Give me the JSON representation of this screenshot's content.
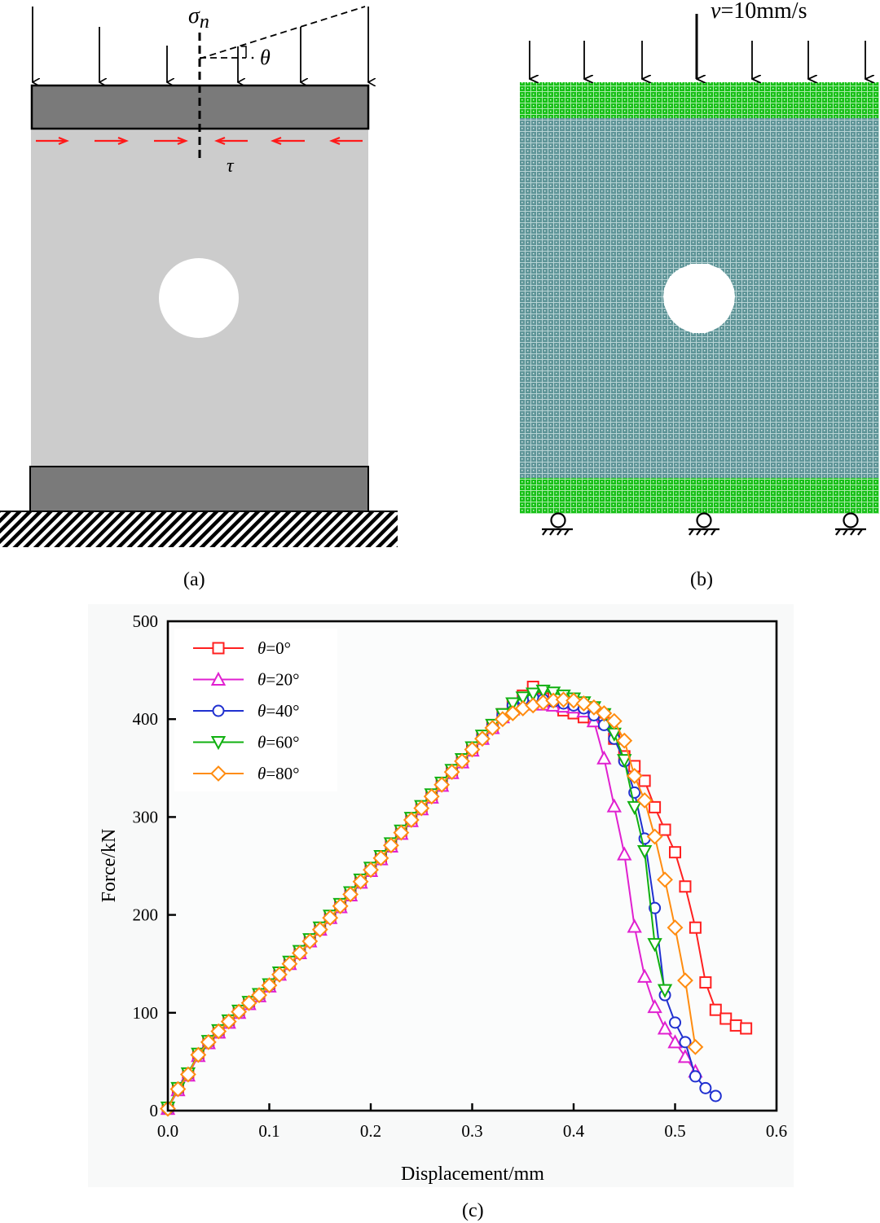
{
  "panel_a": {
    "caption": "(a)",
    "sigma_label": "σ",
    "sigma_sub": "n",
    "tau_label": "τ",
    "theta_label": "θ",
    "colors": {
      "plate": "#7a7a7a",
      "specimen": "#cccccc",
      "shear_arrow": "#ff1a1a"
    }
  },
  "panel_b": {
    "caption": "(b)",
    "velocity_label": "v=10mm/s",
    "velocity_symbol": "v",
    "velocity_value": "=10mm/s",
    "colors": {
      "loading_plate": "#1ec81e",
      "specimen_mesh": "#5f9598"
    }
  },
  "panel_c": {
    "caption": "(c)"
  },
  "chart_data": {
    "type": "line",
    "title": "",
    "xlabel": "Displacement/mm",
    "ylabel": "Force/kN",
    "xlim": [
      0.0,
      0.6
    ],
    "ylim": [
      0,
      500
    ],
    "xticks": [
      "0.0",
      "0.1",
      "0.2",
      "0.3",
      "0.4",
      "0.5",
      "0.6"
    ],
    "yticks": [
      "0",
      "100",
      "200",
      "300",
      "400",
      "500"
    ],
    "grid": false,
    "legend_position": "top-left",
    "series": [
      {
        "name": "θ=0°",
        "theta": "θ",
        "value": "=0°",
        "color": "#ff2020",
        "marker": "square",
        "x": [
          0.0,
          0.01,
          0.02,
          0.03,
          0.04,
          0.05,
          0.06,
          0.07,
          0.08,
          0.09,
          0.1,
          0.11,
          0.12,
          0.13,
          0.14,
          0.15,
          0.16,
          0.17,
          0.18,
          0.19,
          0.2,
          0.21,
          0.22,
          0.23,
          0.24,
          0.25,
          0.26,
          0.27,
          0.28,
          0.29,
          0.3,
          0.31,
          0.32,
          0.33,
          0.34,
          0.35,
          0.36,
          0.37,
          0.38,
          0.39,
          0.4,
          0.41,
          0.42,
          0.43,
          0.44,
          0.45,
          0.46,
          0.47,
          0.48,
          0.49,
          0.5,
          0.51,
          0.52,
          0.53,
          0.54,
          0.55,
          0.56,
          0.57
        ],
        "y": [
          2,
          22,
          37,
          57,
          70,
          80,
          91,
          101,
          110,
          118,
          128,
          140,
          151,
          162,
          174,
          186,
          198,
          210,
          222,
          235,
          247,
          259,
          272,
          285,
          298,
          310,
          322,
          334,
          347,
          358,
          370,
          382,
          393,
          405,
          415,
          424,
          433,
          421,
          415,
          409,
          406,
          402,
          398,
          396,
          380,
          362,
          352,
          337,
          310,
          287,
          264,
          229,
          187,
          131,
          103,
          94,
          87,
          84
        ]
      },
      {
        "name": "θ=20°",
        "theta": "θ",
        "value": "=20°",
        "color": "#e020d0",
        "marker": "triangle-up",
        "x": [
          0.0,
          0.01,
          0.02,
          0.03,
          0.04,
          0.05,
          0.06,
          0.07,
          0.08,
          0.09,
          0.1,
          0.11,
          0.12,
          0.13,
          0.14,
          0.15,
          0.16,
          0.17,
          0.18,
          0.19,
          0.2,
          0.21,
          0.22,
          0.23,
          0.24,
          0.25,
          0.26,
          0.27,
          0.28,
          0.29,
          0.3,
          0.31,
          0.32,
          0.33,
          0.34,
          0.35,
          0.36,
          0.37,
          0.38,
          0.39,
          0.4,
          0.41,
          0.42,
          0.43,
          0.44,
          0.45,
          0.46,
          0.47,
          0.48,
          0.49,
          0.5,
          0.51,
          0.52
        ],
        "y": [
          2,
          21,
          36,
          56,
          69,
          80,
          90,
          100,
          109,
          117,
          127,
          139,
          150,
          161,
          173,
          185,
          197,
          208,
          220,
          233,
          245,
          257,
          270,
          283,
          296,
          308,
          320,
          332,
          345,
          356,
          368,
          380,
          391,
          402,
          410,
          415,
          416,
          415,
          414,
          413,
          412,
          408,
          398,
          360,
          311,
          262,
          188,
          137,
          106,
          84,
          70,
          55,
          40
        ]
      },
      {
        "name": "θ=40°",
        "theta": "θ",
        "value": "=40°",
        "color": "#2030d0",
        "marker": "circle",
        "x": [
          0.0,
          0.01,
          0.02,
          0.03,
          0.04,
          0.05,
          0.06,
          0.07,
          0.08,
          0.09,
          0.1,
          0.11,
          0.12,
          0.13,
          0.14,
          0.15,
          0.16,
          0.17,
          0.18,
          0.19,
          0.2,
          0.21,
          0.22,
          0.23,
          0.24,
          0.25,
          0.26,
          0.27,
          0.28,
          0.29,
          0.3,
          0.31,
          0.32,
          0.33,
          0.34,
          0.35,
          0.36,
          0.37,
          0.38,
          0.39,
          0.4,
          0.41,
          0.42,
          0.43,
          0.44,
          0.45,
          0.46,
          0.47,
          0.48,
          0.49,
          0.5,
          0.51,
          0.52,
          0.53,
          0.54
        ],
        "y": [
          2,
          22,
          37,
          57,
          70,
          81,
          91,
          101,
          110,
          118,
          128,
          140,
          151,
          162,
          174,
          186,
          198,
          210,
          222,
          235,
          247,
          259,
          272,
          285,
          298,
          310,
          322,
          334,
          347,
          358,
          370,
          382,
          393,
          404,
          414,
          420,
          422,
          420,
          418,
          416,
          414,
          411,
          404,
          394,
          380,
          357,
          325,
          278,
          207,
          118,
          90,
          70,
          35,
          23,
          15
        ]
      },
      {
        "name": "θ=60°",
        "theta": "θ",
        "value": "=60°",
        "color": "#10b010",
        "marker": "triangle-down",
        "x": [
          0.0,
          0.01,
          0.02,
          0.03,
          0.04,
          0.05,
          0.06,
          0.07,
          0.08,
          0.09,
          0.1,
          0.11,
          0.12,
          0.13,
          0.14,
          0.15,
          0.16,
          0.17,
          0.18,
          0.19,
          0.2,
          0.21,
          0.22,
          0.23,
          0.24,
          0.25,
          0.26,
          0.27,
          0.28,
          0.29,
          0.3,
          0.31,
          0.32,
          0.33,
          0.34,
          0.35,
          0.36,
          0.37,
          0.38,
          0.39,
          0.4,
          0.41,
          0.42,
          0.43,
          0.44,
          0.45,
          0.46,
          0.47,
          0.48,
          0.49
        ],
        "y": [
          3,
          23,
          38,
          58,
          71,
          82,
          92,
          102,
          111,
          119,
          129,
          141,
          152,
          163,
          175,
          187,
          199,
          211,
          223,
          236,
          248,
          260,
          273,
          286,
          299,
          311,
          323,
          335,
          348,
          359,
          371,
          383,
          394,
          405,
          416,
          422,
          426,
          429,
          427,
          424,
          421,
          417,
          412,
          405,
          385,
          358,
          310,
          265,
          170,
          123
        ]
      },
      {
        "name": "θ=80°",
        "theta": "θ",
        "value": "=80°",
        "color": "#ff8c10",
        "marker": "diamond",
        "x": [
          0.0,
          0.01,
          0.02,
          0.03,
          0.04,
          0.05,
          0.06,
          0.07,
          0.08,
          0.09,
          0.1,
          0.11,
          0.12,
          0.13,
          0.14,
          0.15,
          0.16,
          0.17,
          0.18,
          0.19,
          0.2,
          0.21,
          0.22,
          0.23,
          0.24,
          0.25,
          0.26,
          0.27,
          0.28,
          0.29,
          0.3,
          0.31,
          0.32,
          0.33,
          0.34,
          0.35,
          0.36,
          0.37,
          0.38,
          0.39,
          0.4,
          0.41,
          0.42,
          0.43,
          0.44,
          0.45,
          0.46,
          0.47,
          0.48,
          0.49,
          0.5,
          0.51,
          0.52
        ],
        "y": [
          2,
          22,
          37,
          57,
          70,
          81,
          91,
          101,
          110,
          118,
          128,
          139,
          150,
          161,
          173,
          185,
          197,
          209,
          221,
          234,
          246,
          258,
          271,
          284,
          297,
          309,
          321,
          333,
          346,
          357,
          369,
          380,
          391,
          400,
          406,
          411,
          414,
          417,
          419,
          420,
          419,
          416,
          412,
          406,
          398,
          378,
          342,
          317,
          280,
          236,
          187,
          133,
          65
        ]
      }
    ]
  }
}
